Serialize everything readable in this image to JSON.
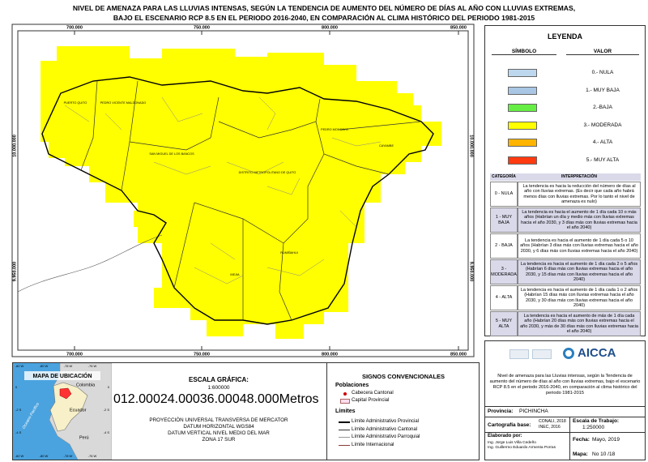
{
  "title_lines": [
    "NIVEL DE AMENAZA PARA LAS LLUVIAS INTENSAS, SEGÚN LA TENDENCIA DE AUMENTO DEL NÚMERO DE DÍAS AL AÑO CON LLUVIAS EXTREMAS,",
    "BAJO EL ESCENARIO RCP 8.5 EN EL PERIODO 2016-2040, EN COMPARACIÓN AL CLIMA HISTÓRICO DEL PERIODO 1981-2015"
  ],
  "map": {
    "easting_labels": [
      "700.000",
      "750.000",
      "800.000",
      "850.000"
    ],
    "northing_labels": [
      "10.000.000",
      "9.950.000"
    ],
    "places": [
      "PUERTO QUITO",
      "PEDRO VICENTE MALDONADO",
      "SAN MIGUEL DE LOS BANCOS",
      "DISTRITO METROPOLITANO DE QUITO",
      "PEDRO MONCAYO",
      "CAYAMBE",
      "RUMIÑAHUI",
      "MEJIA"
    ]
  },
  "legend": {
    "title": "LEYENDA",
    "header": [
      "SÍMBOLO",
      "VALOR"
    ],
    "items": [
      {
        "label": "0.- NULA",
        "color": "#bdd7ee"
      },
      {
        "label": "1.- MUY BAJA",
        "color": "#a9c6e4"
      },
      {
        "label": "2.-BAJA",
        "color": "#66ee44"
      },
      {
        "label": "3.- MODERADA",
        "color": "#ffff00"
      },
      {
        "label": "4.- ALTA",
        "color": "#ffb400"
      },
      {
        "label": "5.- MUY ALTA",
        "color": "#ff3a10"
      }
    ]
  },
  "interpretation": {
    "header": [
      "CATEGORÍA",
      "INTERPRETACIÓN"
    ],
    "rows": [
      [
        "0 - NULA",
        "La tendencia es hacia la reducción del número de días al año con lluvias extremas. (Es decir que cada año habrá menos días con lluvias extremas. Por lo tanto el nivel de amenaza es nulo)"
      ],
      [
        "1 - MUY BAJA",
        "La tendencia es hacia el aumento de 1 día cada 10 o más años (Habrían un día y medio más con lluvias extremas hacia el año 2030, y 3 días más con lluvias extremas hacia el año 2040)"
      ],
      [
        "2 - BAJA",
        "La tendencia es hacia el aumento de 1 día cada 5 o 10 años (Habrían 3 días más con lluvias extremas hacia el año 2030, y 6 días más con lluvias extremas hacia el año 2040)"
      ],
      [
        "3 - MODERADA",
        "La tendencia es hacia el aumento de 1 día cada 2 o 5 años (Habrían 6 días más con lluvias extremas hacia el año 2030, y 15 días más con lluvias extremas hacia el año 2040)"
      ],
      [
        "4 - ALTA",
        "La tendencia es hacia el aumento de 1 día cada 1 o 2 años (Habrían 15 días más con lluvias extremas hacia el año 2030, y 30 días más con lluvias extremas hacia el año 2040)"
      ],
      [
        "5 - MUY ALTA",
        "La tendencia es hacia el aumento de más de 1 día cada año (Habrían 20 días más con lluvias extremas hacia el año 2030, y más de 30 días más con lluvias extremas hacia el año 2040)"
      ]
    ]
  },
  "location_map": {
    "title": "MAPA DE UBICACIÓN",
    "countries": [
      "Colombia",
      "Ecuador",
      "Perú"
    ],
    "ocean": "Oceano Pacifico",
    "lon_labels": [
      "-82 W",
      "-80 W",
      "-78 W",
      "-76 W"
    ],
    "lat_labels": [
      "0",
      "-2 S",
      "-4 S"
    ]
  },
  "scale": {
    "title": "ESCALA GRÁFICA:",
    "ratio": "1:600000",
    "ticks": [
      "0",
      "12.000",
      "24.000",
      "36.000",
      "48.000"
    ],
    "unit": "Metros",
    "projection": [
      "PROYECCIÓN UNIVERSAL TRANSVERSA DE MERCATOR",
      "DATUM HORIZONTAL WGS84",
      "DATUM VERTICAL NIVEL MEDIO DEL MAR",
      "ZONA 17 SUR"
    ]
  },
  "signs": {
    "title": "SIGNOS CONVENCIONALES",
    "populations_title": "Poblaciones",
    "populations": [
      "Cabecera Cantonal",
      "Capital Provincial"
    ],
    "limits_title": "Límites",
    "limits": [
      "Límite Administrativo Provincial",
      "Límite Administrativo Cantonal",
      "Límite Administrativo Parroquial",
      "Límite Internacional"
    ]
  },
  "credits": {
    "logo": "AICCA",
    "description": "Nivel de amenaza para las Lluvias intensas, según la Tendencia de aumento del número de días al año con lluvias extremas, bajo el escenario RCP 8.5 en el periodo 2016-2040, en comparación al clima histórico del periodo 1981-2015",
    "province_label": "Provincia:",
    "province": "PICHINCHA",
    "base_label": "Cartografía base:",
    "base": [
      "CONALI, 2018",
      "INEC, 2016"
    ],
    "work_scale_label": "Escala de Trabajo:",
    "work_scale": "1:250000",
    "author_label": "Elaborado por:",
    "authors": [
      "Ing. Jorge Luis Villa Cedeño",
      "Ing. Guillermo Eduardo Armenta Porras"
    ],
    "date_label": "Fecha:",
    "date": "Mayo, 2019",
    "map_label": "Mapa:",
    "map_no": "No 10 /18"
  }
}
